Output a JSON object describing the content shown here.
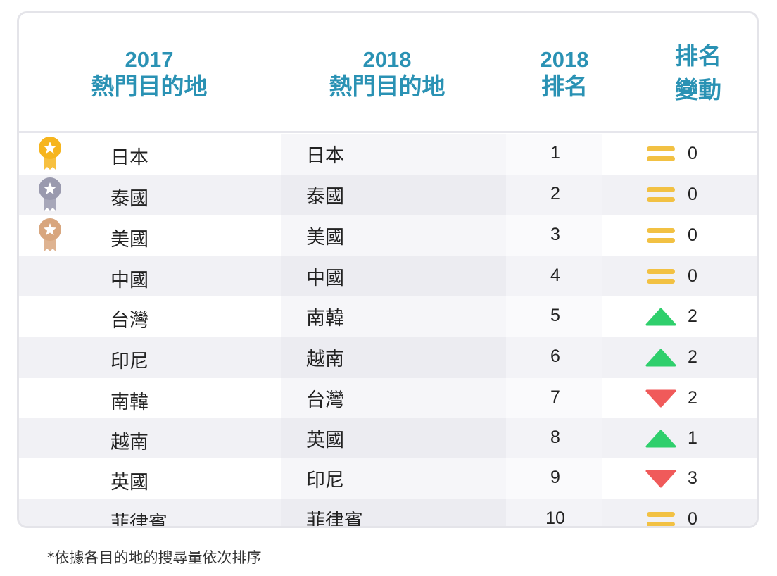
{
  "header": {
    "col_2017_year": "2017",
    "col_2017_label": "熱門目的地",
    "col_2018_year": "2018",
    "col_2018_label": "熱門目的地",
    "col_rank_year": "2018",
    "col_rank_label": "排名",
    "col_change_line1": "排名",
    "col_change_line2": "變動"
  },
  "rows": [
    {
      "dest_2017": "日本",
      "dest_2018": "日本",
      "rank": "1",
      "change_dir": "same",
      "change": "0",
      "medal": "gold"
    },
    {
      "dest_2017": "泰國",
      "dest_2018": "泰國",
      "rank": "2",
      "change_dir": "same",
      "change": "0",
      "medal": "silver"
    },
    {
      "dest_2017": "美國",
      "dest_2018": "美國",
      "rank": "3",
      "change_dir": "same",
      "change": "0",
      "medal": "bronze"
    },
    {
      "dest_2017": "中國",
      "dest_2018": "中國",
      "rank": "4",
      "change_dir": "same",
      "change": "0",
      "medal": ""
    },
    {
      "dest_2017": "台灣",
      "dest_2018": "南韓",
      "rank": "5",
      "change_dir": "up",
      "change": "2",
      "medal": ""
    },
    {
      "dest_2017": "印尼",
      "dest_2018": "越南",
      "rank": "6",
      "change_dir": "up",
      "change": "2",
      "medal": ""
    },
    {
      "dest_2017": "南韓",
      "dest_2018": "台灣",
      "rank": "7",
      "change_dir": "down",
      "change": "2",
      "medal": ""
    },
    {
      "dest_2017": "越南",
      "dest_2018": "英國",
      "rank": "8",
      "change_dir": "up",
      "change": "1",
      "medal": ""
    },
    {
      "dest_2017": "英國",
      "dest_2018": "印尼",
      "rank": "9",
      "change_dir": "down",
      "change": "3",
      "medal": ""
    },
    {
      "dest_2017": "菲律賓",
      "dest_2018": "菲律賓",
      "rank": "10",
      "change_dir": "same",
      "change": "0",
      "medal": ""
    }
  ],
  "colors": {
    "header_text": "#2a92b4",
    "same": "#f2c143",
    "up": "#2fcf6c",
    "down": "#f05a5a",
    "gold": "#f6b51e",
    "silver": "#9a9aae",
    "bronze": "#d8a67e"
  },
  "footnote": "*依據各目的地的搜尋量依次排序"
}
